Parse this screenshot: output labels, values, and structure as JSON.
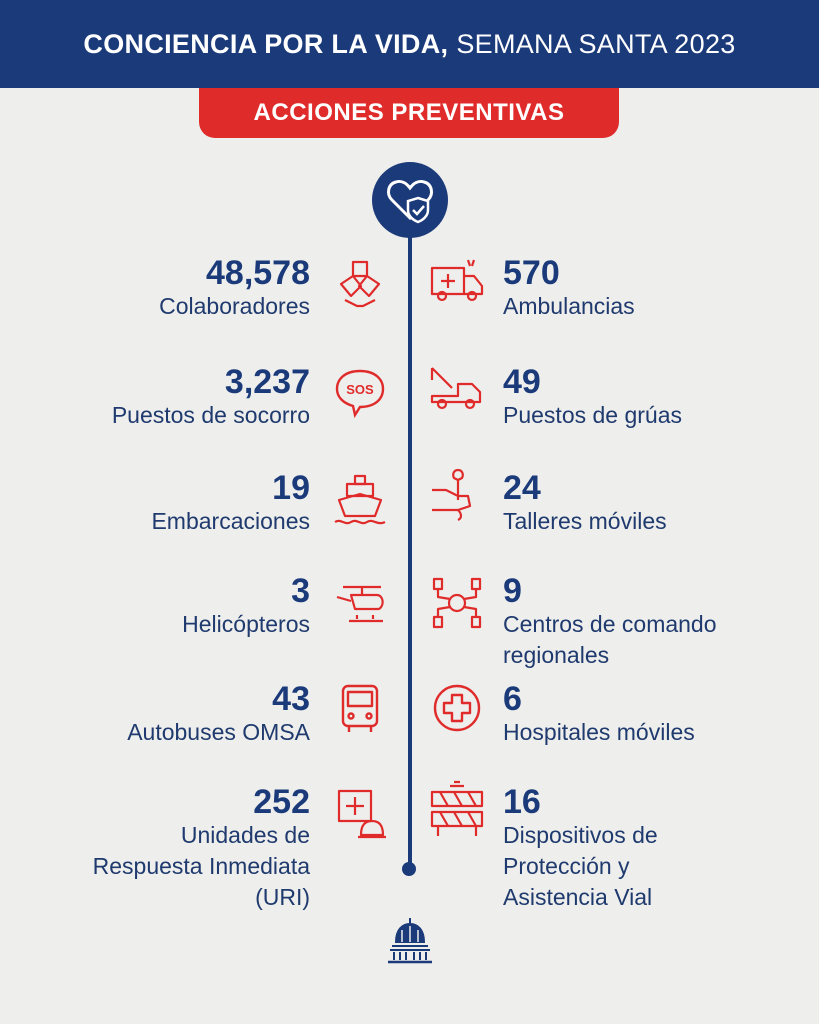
{
  "header": {
    "title_bold": "CONCIENCIA POR LA VIDA,",
    "title_light": "SEMANA SANTA 2023"
  },
  "banner": {
    "label": "ACCIONES PREVENTIVAS"
  },
  "left": [
    {
      "value": "48,578",
      "label": "Colaboradores",
      "icon": "helping-hands-icon"
    },
    {
      "value": "3,237",
      "label": "Puestos de socorro",
      "icon": "sos-bubble-icon"
    },
    {
      "value": "19",
      "label": "Embarcaciones",
      "icon": "ship-icon"
    },
    {
      "value": "3",
      "label": "Helicópteros",
      "icon": "helicopter-icon"
    },
    {
      "value": "43",
      "label": "Autobuses OMSA",
      "icon": "bus-icon"
    },
    {
      "value": "252",
      "label_lines": [
        "Unidades de",
        "Respuesta Inmediata",
        "(URI)"
      ],
      "icon": "medical-siren-icon"
    }
  ],
  "right": [
    {
      "value": "570",
      "label": "Ambulancias",
      "icon": "ambulance-icon"
    },
    {
      "value": "49",
      "label": "Puestos de grúas",
      "icon": "tow-truck-icon"
    },
    {
      "value": "24",
      "label": "Talleres móviles",
      "icon": "wrench-hand-icon"
    },
    {
      "value": "9",
      "label_lines": [
        "Centros de comando",
        "regionales"
      ],
      "icon": "command-network-icon"
    },
    {
      "value": "6",
      "label": "Hospitales móviles",
      "icon": "medical-cross-icon"
    },
    {
      "value": "16",
      "label_lines": [
        "Dispositivos de",
        "Protección y",
        "Asistencia Vial"
      ],
      "icon": "road-barrier-icon"
    }
  ],
  "colors": {
    "navy": "#1b3a7a",
    "red": "#e02b2b",
    "background": "#eeeeec"
  }
}
